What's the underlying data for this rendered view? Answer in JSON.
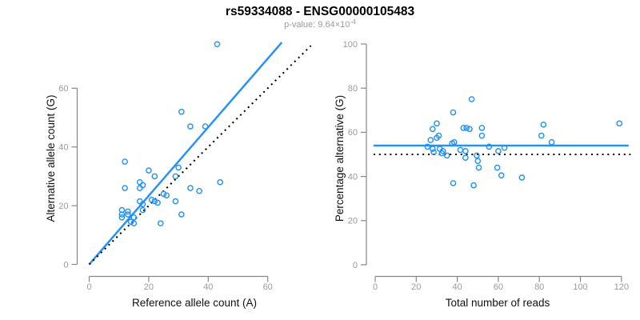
{
  "header": {
    "title": "rs59334088 - ENSG00000105483",
    "subtitle_prefix": "p-value: 9.64×10",
    "subtitle_exponent": "-4"
  },
  "colors": {
    "accent_blue": "#1e90ff",
    "dashed_black": "#000000",
    "axis_gray": "#878787",
    "tick_label_gray": "#9a9a9a"
  },
  "chart_data": [
    {
      "type": "scatter",
      "title": "",
      "xlabel": "Reference allele count (A)",
      "ylabel": "Alternative allele count (G)",
      "xlim": [
        0,
        65
      ],
      "ylim": [
        0,
        76
      ],
      "x_ticks": [
        0,
        20,
        40,
        60
      ],
      "y_ticks": [
        0,
        20,
        40,
        60
      ],
      "grid": false,
      "legend": false,
      "marker": "open-circle",
      "points": [
        [
          43,
          75
        ],
        [
          31,
          52
        ],
        [
          34,
          47
        ],
        [
          39,
          47
        ],
        [
          12,
          35
        ],
        [
          20,
          32
        ],
        [
          30,
          33
        ],
        [
          22,
          30
        ],
        [
          29,
          30
        ],
        [
          44,
          28
        ],
        [
          17,
          28
        ],
        [
          18,
          27
        ],
        [
          17,
          26
        ],
        [
          12,
          26
        ],
        [
          34,
          26
        ],
        [
          37,
          25
        ],
        [
          25,
          24
        ],
        [
          26,
          23.5
        ],
        [
          21,
          22
        ],
        [
          22,
          21.5
        ],
        [
          23,
          21
        ],
        [
          17,
          21.5
        ],
        [
          18,
          20.5
        ],
        [
          29,
          21.5
        ],
        [
          18,
          18.5
        ],
        [
          11,
          18.5
        ],
        [
          13,
          18
        ],
        [
          11,
          17
        ],
        [
          13,
          17
        ],
        [
          11,
          16
        ],
        [
          15,
          16
        ],
        [
          14,
          14.5
        ],
        [
          15,
          14
        ],
        [
          31,
          17
        ],
        [
          24,
          14
        ]
      ],
      "lines": [
        {
          "name": "fit-line",
          "style": "solid",
          "color": "#1e90ff",
          "from": [
            0,
            0
          ],
          "to": [
            64.7,
            75.6
          ]
        },
        {
          "name": "identity-line",
          "style": "dotted",
          "color": "#000000",
          "from": [
            0,
            0
          ],
          "to": [
            74.5,
            74.5
          ]
        }
      ]
    },
    {
      "type": "scatter",
      "title": "",
      "xlabel": "Total number of reads",
      "ylabel": "Percentage alternative (G)",
      "xlim": [
        0,
        124
      ],
      "ylim": [
        0,
        100
      ],
      "x_ticks": [
        0,
        20,
        40,
        60,
        80,
        100,
        120
      ],
      "y_ticks": [
        0,
        20,
        40,
        60,
        80,
        100
      ],
      "grid": false,
      "legend": false,
      "marker": "open-circle",
      "points": [
        [
          47,
          75
        ],
        [
          38,
          69
        ],
        [
          30,
          64
        ],
        [
          119,
          64
        ],
        [
          82,
          63.5
        ],
        [
          28,
          61.5
        ],
        [
          43,
          62
        ],
        [
          44.5,
          62
        ],
        [
          46,
          61.5
        ],
        [
          52,
          62
        ],
        [
          81,
          58.5
        ],
        [
          52,
          58.5
        ],
        [
          31,
          58.5
        ],
        [
          30,
          57.5
        ],
        [
          27,
          56.5
        ],
        [
          86,
          55.5
        ],
        [
          37.5,
          55
        ],
        [
          38.5,
          55.5
        ],
        [
          25.5,
          53.5
        ],
        [
          28,
          52.5
        ],
        [
          31.5,
          52.5
        ],
        [
          33,
          51.5
        ],
        [
          41.5,
          52
        ],
        [
          44,
          51.5
        ],
        [
          55.5,
          53.5
        ],
        [
          63,
          53
        ],
        [
          60,
          51.5
        ],
        [
          28.5,
          51
        ],
        [
          32.5,
          50.5
        ],
        [
          35,
          49.5
        ],
        [
          49.5,
          49.5
        ],
        [
          44,
          48.5
        ],
        [
          50,
          47
        ],
        [
          50.5,
          44
        ],
        [
          59.5,
          44
        ],
        [
          61.5,
          40.5
        ],
        [
          71.5,
          39.5
        ],
        [
          48,
          36
        ],
        [
          38,
          37
        ]
      ],
      "lines": [
        {
          "name": "mean-line",
          "style": "solid",
          "color": "#1e90ff",
          "y": 54,
          "x_range": [
            -0.8,
            123.5
          ]
        },
        {
          "name": "expected-line",
          "style": "dotted",
          "color": "#000000",
          "y": 50,
          "x_range": [
            -0.8,
            124.5
          ]
        }
      ]
    }
  ]
}
